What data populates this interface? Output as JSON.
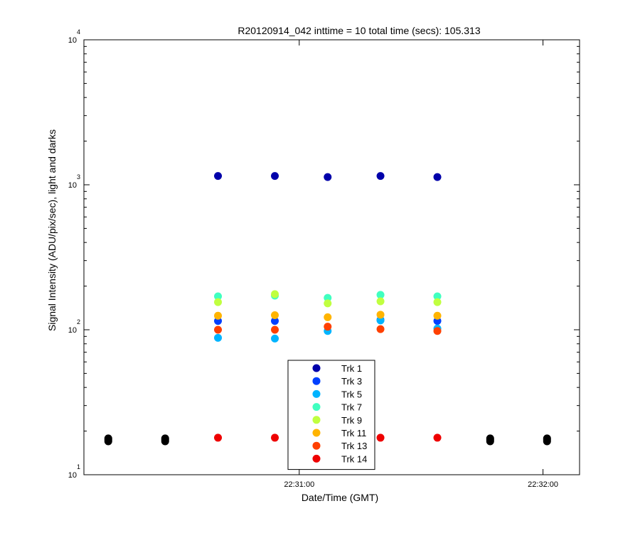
{
  "chart_data": {
    "type": "scatter",
    "title": "R20120914_042 inttime = 10 total time (secs): 105.313",
    "xlabel": "Date/Time (GMT)",
    "ylabel": "Signal Intensity (ADU/pix/sec), light and darks",
    "yscale": "log",
    "ylim": [
      10,
      10000
    ],
    "xlim": [
      "22:30:07",
      "22:32:09"
    ],
    "x_ticks": [
      {
        "t": "22:31:00",
        "label": "22:31:00"
      },
      {
        "t": "22:32:00",
        "label": "22:32:00"
      }
    ],
    "y_ticks": [
      {
        "value": 10,
        "base": "10",
        "exp": "1"
      },
      {
        "value": 100,
        "base": "10",
        "exp": "2"
      },
      {
        "value": 1000,
        "base": "10",
        "exp": "3"
      },
      {
        "value": 10000,
        "base": "10",
        "exp": "4"
      }
    ],
    "legend_position": "bottom-center",
    "series": [
      {
        "name": "Trk 1",
        "color": "#0000aa",
        "points": [
          [
            "22:30:40",
            1150
          ],
          [
            "22:30:54",
            1150
          ],
          [
            "22:31:07",
            1130
          ],
          [
            "22:31:20",
            1150
          ],
          [
            "22:31:34",
            1130
          ]
        ]
      },
      {
        "name": "Trk 3",
        "color": "#0040ff",
        "points": [
          [
            "22:30:40",
            115
          ],
          [
            "22:30:54",
            115
          ],
          [
            "22:31:20",
            117
          ],
          [
            "22:31:34",
            115
          ]
        ]
      },
      {
        "name": "Trk 5",
        "color": "#00b4ff",
        "points": [
          [
            "22:30:40",
            88
          ],
          [
            "22:30:54",
            87
          ],
          [
            "22:31:07",
            98
          ],
          [
            "22:31:20",
            116
          ],
          [
            "22:31:34",
            102
          ]
        ]
      },
      {
        "name": "Trk 7",
        "color": "#40ffc0",
        "points": [
          [
            "22:30:40",
            170
          ],
          [
            "22:30:54",
            172
          ],
          [
            "22:31:07",
            166
          ],
          [
            "22:31:20",
            174
          ],
          [
            "22:31:34",
            170
          ]
        ]
      },
      {
        "name": "Trk 9",
        "color": "#c0ff40",
        "points": [
          [
            "22:30:40",
            155
          ],
          [
            "22:30:54",
            176
          ],
          [
            "22:31:07",
            152
          ],
          [
            "22:31:20",
            157
          ],
          [
            "22:31:34",
            155
          ]
        ]
      },
      {
        "name": "Trk 11",
        "color": "#ffb400",
        "points": [
          [
            "22:30:40",
            125
          ],
          [
            "22:30:54",
            126
          ],
          [
            "22:31:07",
            122
          ],
          [
            "22:31:20",
            127
          ],
          [
            "22:31:34",
            125
          ]
        ]
      },
      {
        "name": "Trk 13",
        "color": "#ff4000",
        "points": [
          [
            "22:30:40",
            100
          ],
          [
            "22:30:54",
            100
          ],
          [
            "22:31:07",
            105
          ],
          [
            "22:31:20",
            101
          ],
          [
            "22:31:34",
            98
          ]
        ]
      },
      {
        "name": "Trk 14",
        "color": "#ee0000",
        "points": [
          [
            "22:30:40",
            18
          ],
          [
            "22:30:54",
            18
          ],
          [
            "22:31:20",
            18
          ],
          [
            "22:31:34",
            18
          ]
        ]
      }
    ],
    "dark_points": {
      "color": "#000000",
      "points": [
        [
          "22:30:13",
          17.8
        ],
        [
          "22:30:13",
          17.4
        ],
        [
          "22:30:13",
          17.0
        ],
        [
          "22:30:27",
          17.8
        ],
        [
          "22:30:27",
          17.4
        ],
        [
          "22:30:27",
          17.0
        ],
        [
          "22:31:47",
          17.8
        ],
        [
          "22:31:47",
          17.4
        ],
        [
          "22:31:47",
          17.0
        ],
        [
          "22:32:01",
          17.8
        ],
        [
          "22:32:01",
          17.4
        ],
        [
          "22:32:01",
          17.0
        ]
      ]
    }
  }
}
